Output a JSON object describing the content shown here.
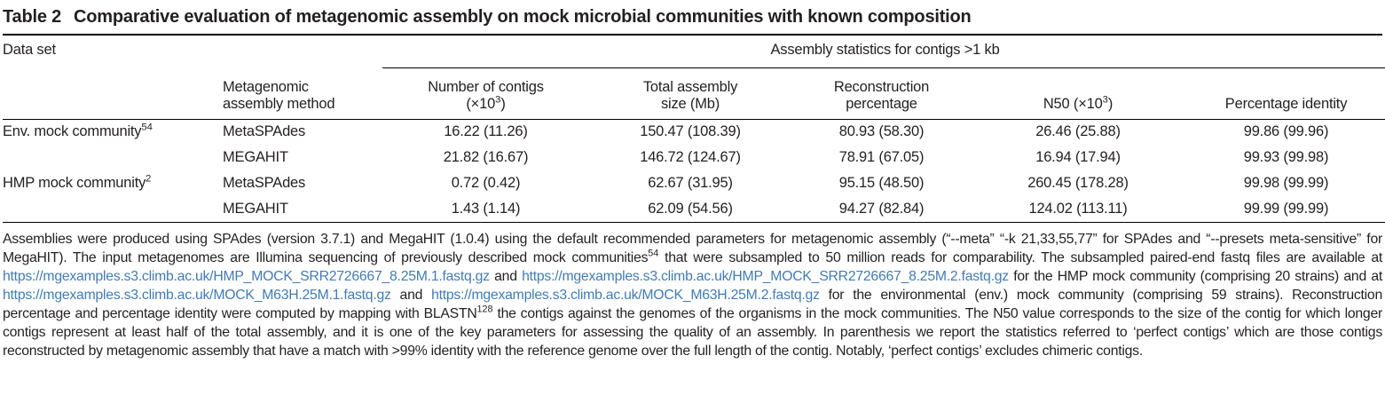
{
  "colors": {
    "text": "#231f20",
    "link": "#3f7cba",
    "rule": "#000000"
  },
  "title": {
    "label": "Table 2",
    "text": "Comparative evaluation of metagenomic assembly on mock microbial communities with known composition"
  },
  "table": {
    "col_dataset": "Data set",
    "col_method": "Metagenomic\nassembly method",
    "span_header": "Assembly statistics for contigs >1 kb",
    "stat_columns": [
      "Number of contigs\n(×10^{3})",
      "Total assembly\nsize (Mb)",
      "Reconstruction\npercentage",
      "N50 (×10^{3})",
      "Percentage identity"
    ],
    "rows": [
      {
        "dataset": "Env. mock community^{54}",
        "method": "MetaSPAdes",
        "values": [
          "16.22 (11.26)",
          "150.47 (108.39)",
          "80.93 (58.30)",
          "26.46 (25.88)",
          "99.86 (99.96)"
        ]
      },
      {
        "dataset": "",
        "method": "MEGAHIT",
        "values": [
          "21.82 (16.67)",
          "146.72 (124.67)",
          "78.91 (67.05)",
          "16.94 (17.94)",
          "99.93 (99.98)"
        ]
      },
      {
        "dataset": "HMP mock community^{2}",
        "method": "MetaSPAdes",
        "values": [
          "0.72 (0.42)",
          "62.67 (31.95)",
          "95.15 (48.50)",
          "260.45 (178.28)",
          "99.98 (99.99)"
        ]
      },
      {
        "dataset": "",
        "method": "MEGAHIT",
        "values": [
          "1.43 (1.14)",
          "62.09 (54.56)",
          "94.27 (82.84)",
          "124.02 (113.11)",
          "99.99 (99.99)"
        ]
      }
    ]
  },
  "footnote": {
    "segments": [
      {
        "type": "text",
        "text": "Assemblies were produced using SPAdes (version 3.7.1) and MegaHIT (1.0.4) using the default recommended parameters for metagenomic assembly (“--meta” “-k 21,33,55,77” for SPAdes and “--presets meta-sensitive” for MegaHIT). The input metagenomes are Illumina sequencing of previously described mock communities^{54} that were subsampled to 50 million reads for comparability. The subsampled paired-end fastq files are available at "
      },
      {
        "type": "link",
        "text": "https://mgexamples.s3.climb.ac.uk/HMP_MOCK_SRR2726667_8.25M.1.fastq.gz"
      },
      {
        "type": "text",
        "text": " and "
      },
      {
        "type": "link",
        "text": "https://mgexamples.s3.climb.ac.uk/HMP_MOCK_SRR2726667_8.25M.2.fastq.gz"
      },
      {
        "type": "text",
        "text": " for the HMP mock community (comprising 20 strains) and at "
      },
      {
        "type": "link",
        "text": "https://mgexamples.s3.climb.ac.uk/MOCK_M63H.25M.1.fastq.gz"
      },
      {
        "type": "text",
        "text": " and "
      },
      {
        "type": "link",
        "text": "https://mgexamples.s3.climb.ac.uk/MOCK_M63H.25M.2.fastq.gz"
      },
      {
        "type": "text",
        "text": " for the environmental (env.) mock community (comprising 59 strains). Reconstruction percentage and percentage identity were computed by mapping with BLASTN^{128} the contigs against the genomes of the organisms in the mock communities. The N50 value corresponds to the size of the contig for which longer contigs represent at least half of the total assembly, and it is one of the key parameters for assessing the quality of an assembly. In parenthesis we report the statistics referred to ‘perfect contigs’ which are those contigs reconstructed by metagenomic assembly that have a match with >99% identity with the reference genome over the full length of the contig. Notably, ‘perfect contigs’ excludes chimeric contigs."
      }
    ]
  }
}
